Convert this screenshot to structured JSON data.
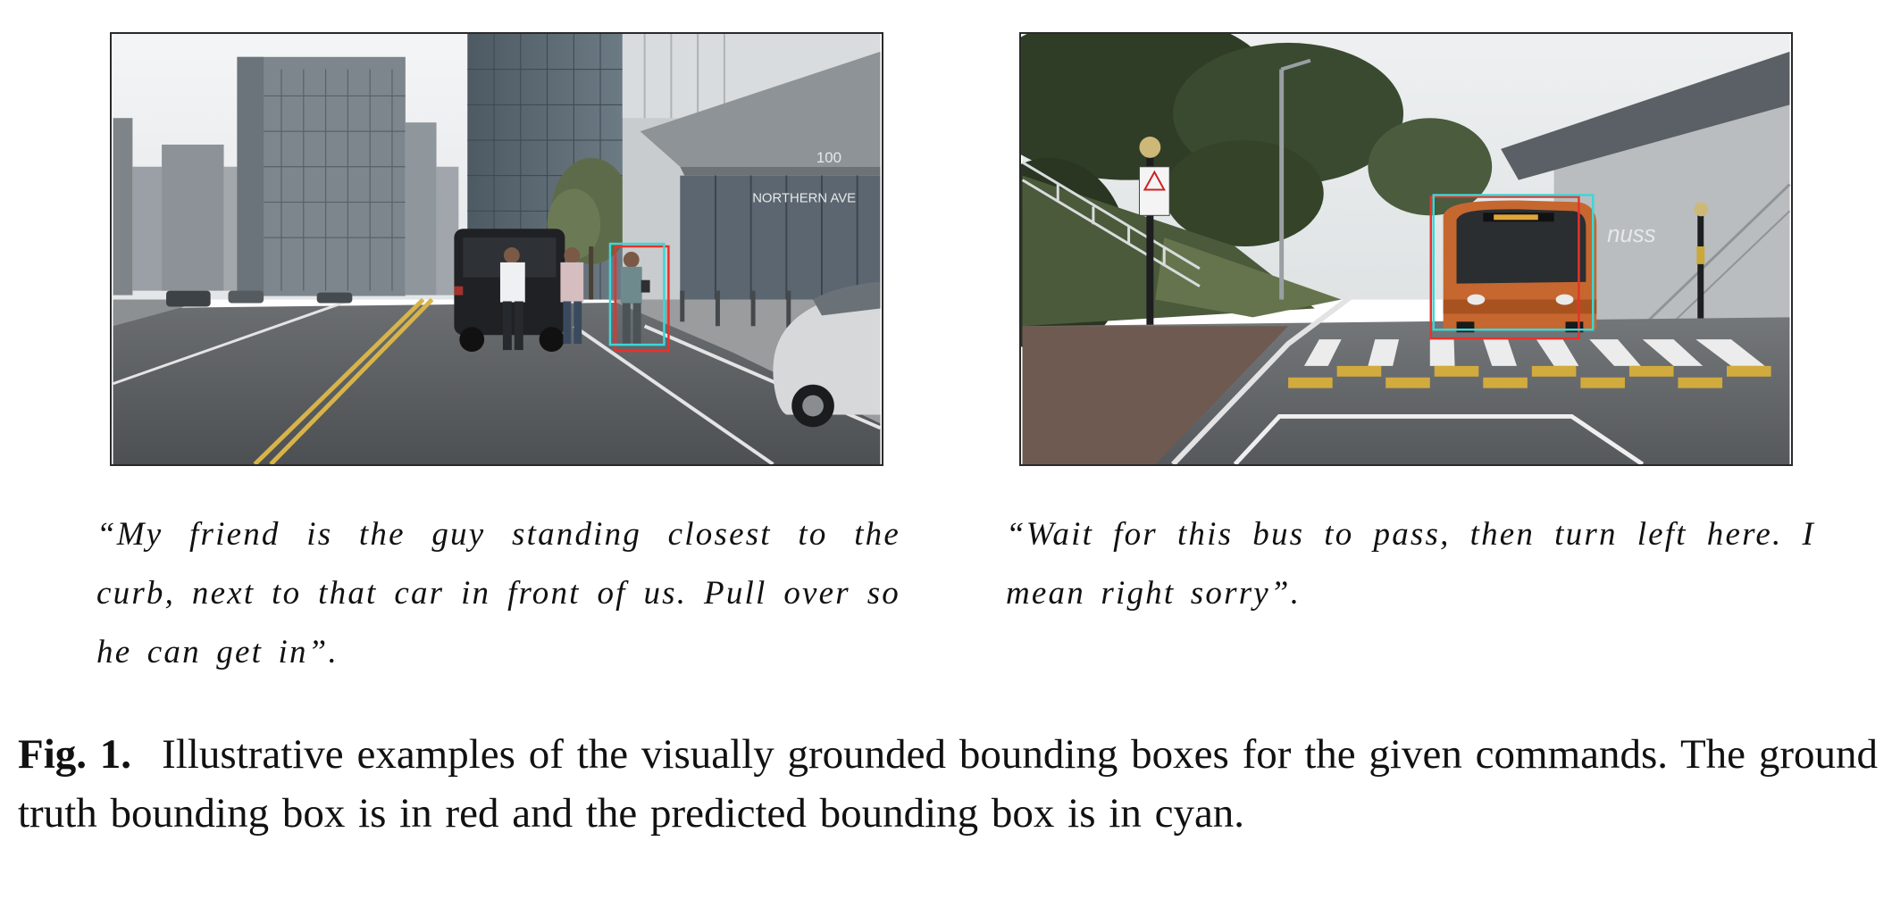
{
  "figure": {
    "panels": [
      {
        "id": "left",
        "scene": "city-street-with-pedestrians",
        "building_sign": [
          "100",
          "NORTHERN AVE"
        ],
        "command": "“My friend is the guy standing closest to the curb, next to that car in front of us. Pull over so he can get in”.",
        "ground_truth_box_color": "#e8322a",
        "predicted_box_color": "#3fd6d6"
      },
      {
        "id": "right",
        "scene": "campus-road-with-bus-at-crosswalk",
        "building_sign": "nuss",
        "command": "“Wait for this bus to pass, then turn left here. I mean right sorry”.",
        "ground_truth_box_color": "#e8322a",
        "predicted_box_color": "#3fd6d6"
      }
    ],
    "caption": {
      "label": "Fig. 1.",
      "text": "Illustrative examples of the visually grounded bounding boxes for the given commands. The ground truth bounding box is in red and the predicted bounding box is in cyan."
    }
  }
}
